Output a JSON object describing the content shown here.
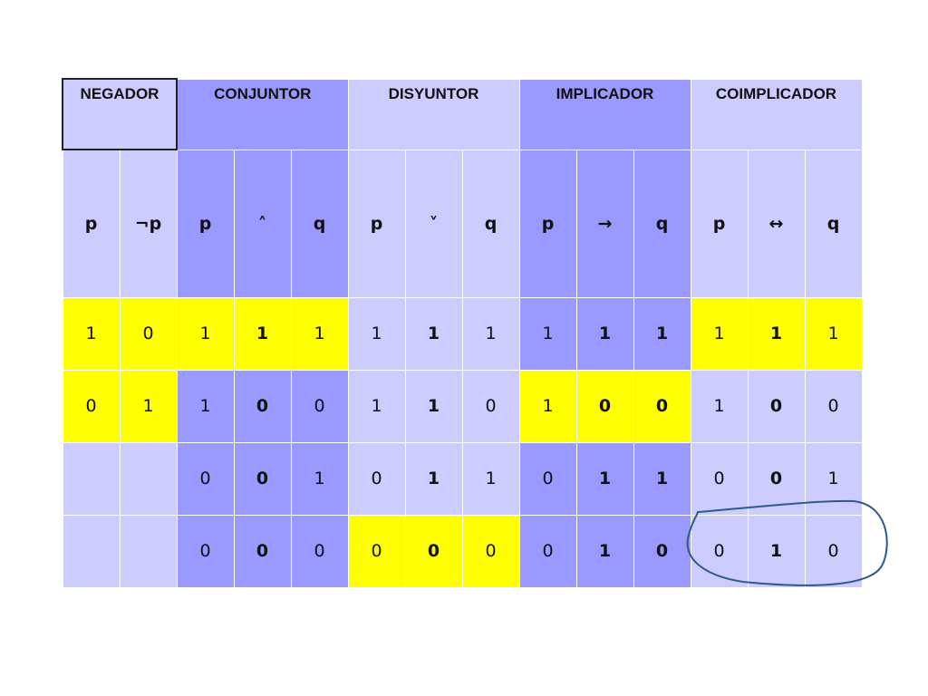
{
  "headers": [
    "NEGADOR",
    "CONJUNTOR",
    "DISYUNTOR",
    "IMPLICADOR",
    "COIMPLICADOR"
  ],
  "variables": [
    "p",
    "¬p",
    "p",
    "˄",
    "q",
    "p",
    "˅",
    "q",
    "p",
    "→",
    "q",
    "p",
    "↔",
    "q"
  ],
  "rows": [
    [
      "1",
      "0",
      "1",
      "1",
      "1",
      "1",
      "1",
      "1",
      "1",
      "1",
      "1",
      "1",
      "1",
      "1"
    ],
    [
      "0",
      "1",
      "1",
      "0",
      "0",
      "1",
      "1",
      "0",
      "1",
      "0",
      "0",
      "1",
      "0",
      "0"
    ],
    [
      "",
      "",
      "0",
      "0",
      "1",
      "0",
      "1",
      "1",
      "0",
      "1",
      "1",
      "0",
      "0",
      "1"
    ],
    [
      "",
      "",
      "0",
      "0",
      "0",
      "0",
      "0",
      "0",
      "0",
      "1",
      "0",
      "0",
      "1",
      "0"
    ]
  ],
  "colors": {
    "lavender": "#ccccff",
    "blue": "#9999ff",
    "yellow": "#ffff00",
    "annotation_ink": "#2c5a8c"
  }
}
